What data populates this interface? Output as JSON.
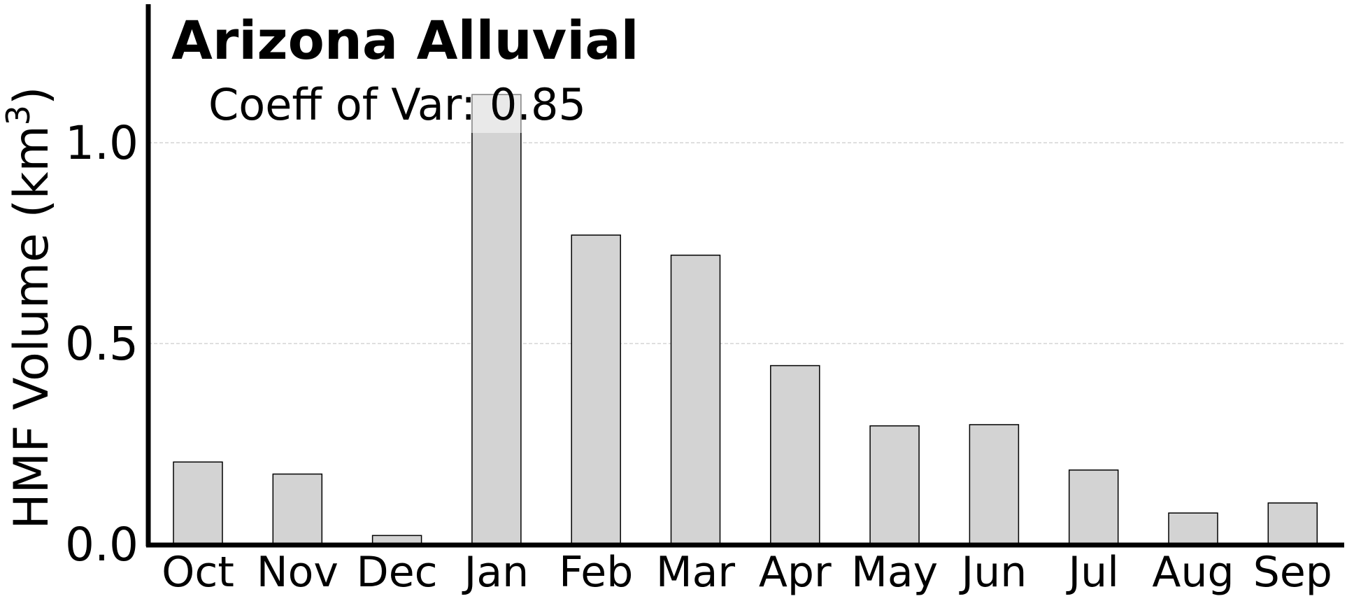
{
  "chart_data": {
    "type": "bar",
    "title": "Arizona Alluvial",
    "annotation": "Coeff of Var: 0.85",
    "xlabel": "",
    "ylabel": "HMF Volume (km",
    "ylabel_superscript": "3",
    "ylabel_suffix": ")",
    "categories": [
      "Oct",
      "Nov",
      "Dec",
      "Jan",
      "Feb",
      "Mar",
      "Apr",
      "May",
      "Jun",
      "Jul",
      "Aug",
      "Sep"
    ],
    "values": [
      0.205,
      0.175,
      0.022,
      1.12,
      0.77,
      0.72,
      0.445,
      0.295,
      0.298,
      0.185,
      0.078,
      0.103
    ],
    "ylim": [
      0.0,
      1.35
    ],
    "yticks": [
      0.0,
      0.5,
      1.0
    ],
    "ytick_labels": [
      "0.0",
      "0.5",
      "1.0"
    ],
    "grid": true,
    "legend": false,
    "colors": {
      "bar_fill": "#d3d3d3",
      "bar_stroke": "#000000",
      "grid": "#cccccc",
      "axis": "#000000",
      "annotation_box": "#ffffff"
    }
  }
}
